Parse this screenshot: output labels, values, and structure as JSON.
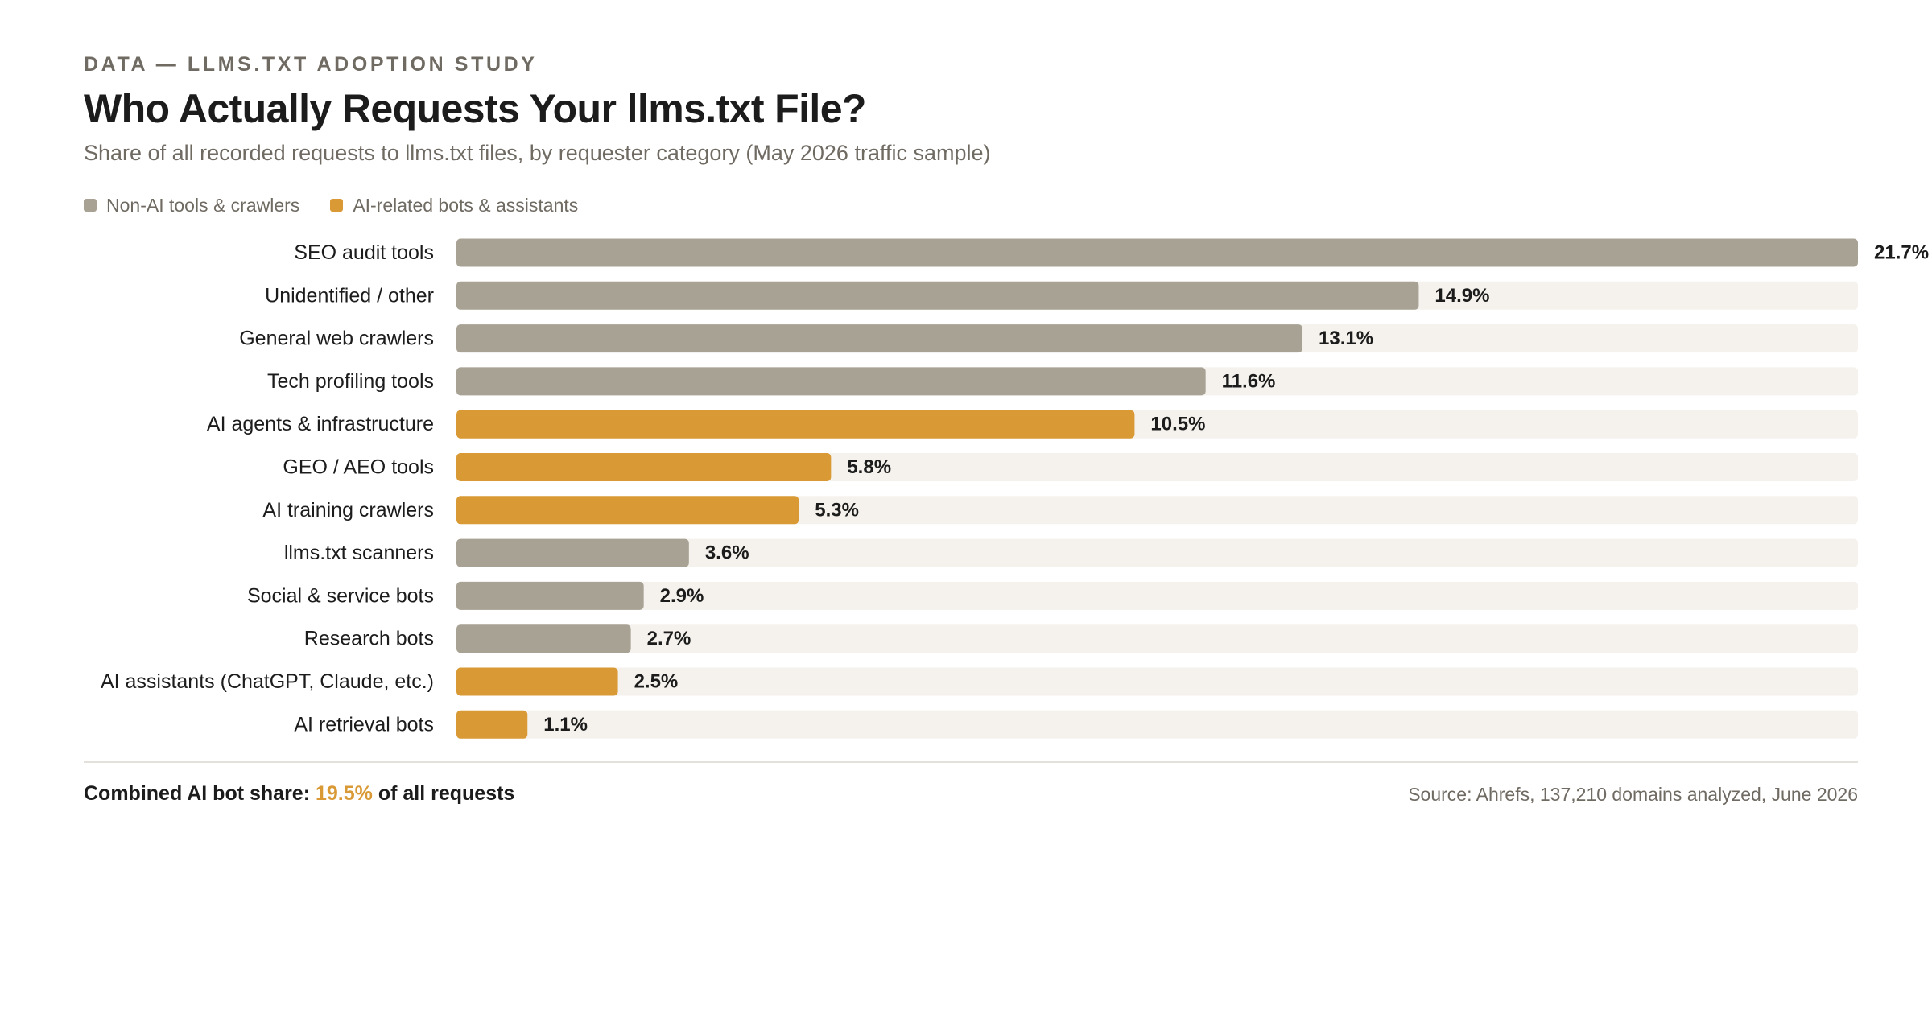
{
  "header": {
    "eyebrow": "DATA — LLMS.TXT ADOPTION STUDY",
    "title": "Who Actually Requests Your llms.txt File?",
    "subtitle": "Share of all recorded requests to llms.txt files, by requester category (May 2026 traffic sample)"
  },
  "legend": {
    "items": [
      {
        "label": "Non-AI tools & crawlers",
        "color": "#a8a295"
      },
      {
        "label": "AI-related bots & assistants",
        "color": "#d99a36"
      }
    ]
  },
  "colors": {
    "non_ai": "#a8a295",
    "ai": "#d99a36",
    "track": "#f5f2ed"
  },
  "chart_data": {
    "type": "bar",
    "orientation": "horizontal",
    "title": "Who Actually Requests Your llms.txt File?",
    "subtitle": "Share of all recorded requests to llms.txt files, by requester category (May 2026 traffic sample)",
    "unit": "%",
    "xlim": [
      0,
      21.7
    ],
    "grid": false,
    "legend_position": "top-left",
    "categories": [
      "SEO audit tools",
      "Unidentified / other",
      "General web crawlers",
      "Tech profiling tools",
      "AI agents & infrastructure",
      "GEO / AEO tools",
      "AI training crawlers",
      "llms.txt scanners",
      "Social & service bots",
      "Research bots",
      "AI assistants (ChatGPT, Claude, etc.)",
      "AI retrieval bots"
    ],
    "values": [
      21.7,
      14.9,
      13.1,
      11.6,
      10.5,
      5.8,
      5.3,
      3.6,
      2.9,
      2.7,
      2.5,
      1.1
    ],
    "value_labels": [
      "21.7%",
      "14.9%",
      "13.1%",
      "11.6%",
      "10.5%",
      "5.8%",
      "5.3%",
      "3.6%",
      "2.9%",
      "2.7%",
      "2.5%",
      "1.1%"
    ],
    "groups": [
      "Non-AI tools & crawlers",
      "Non-AI tools & crawlers",
      "Non-AI tools & crawlers",
      "Non-AI tools & crawlers",
      "AI-related bots & assistants",
      "AI-related bots & assistants",
      "AI-related bots & assistants",
      "Non-AI tools & crawlers",
      "Non-AI tools & crawlers",
      "Non-AI tools & crawlers",
      "AI-related bots & assistants",
      "AI-related bots & assistants"
    ]
  },
  "footer": {
    "summary_prefix": "Combined AI bot share:",
    "summary_value": "19.5%",
    "summary_suffix": "of all requests",
    "source": "Source: Ahrefs, 137,210 domains analyzed, June 2026"
  }
}
